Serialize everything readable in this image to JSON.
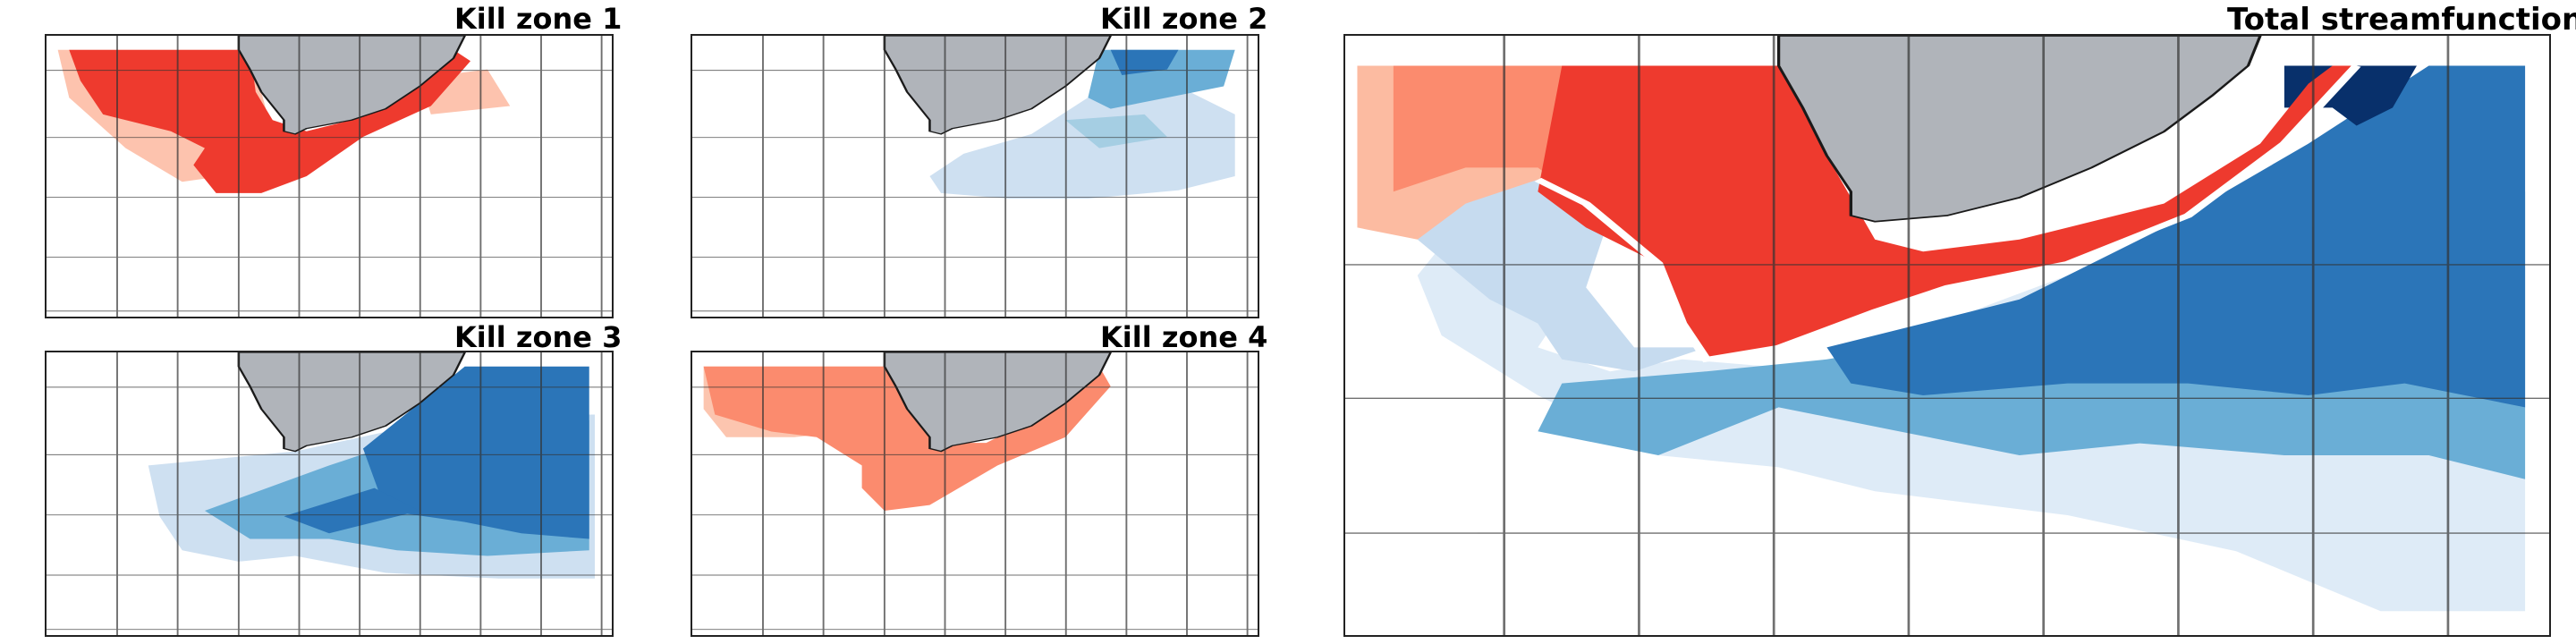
{
  "panels": {
    "kill_zone_1": {
      "title": "Kill zone 1",
      "palette": "reds",
      "fill": "#ee3a2e"
    },
    "kill_zone_2": {
      "title": "Kill zone 2",
      "palette": "blues",
      "fill": "#5aa0d2"
    },
    "kill_zone_3": {
      "title": "Kill zone 3",
      "palette": "blues",
      "fill": "#2b75b8"
    },
    "kill_zone_4": {
      "title": "Kill zone 4",
      "palette": "reds",
      "fill": "#fb8b6e"
    },
    "total": {
      "title": "Total streamfunction",
      "palette": "red-blue",
      "fill_positive": "#ee3a2e",
      "fill_negative": "#2b75b8",
      "fill_max": "#08306b"
    }
  },
  "colors": {
    "land": "#b0b4ba",
    "coastline": "#1a1a1a",
    "grid": "#333333",
    "frame": "#222222"
  }
}
